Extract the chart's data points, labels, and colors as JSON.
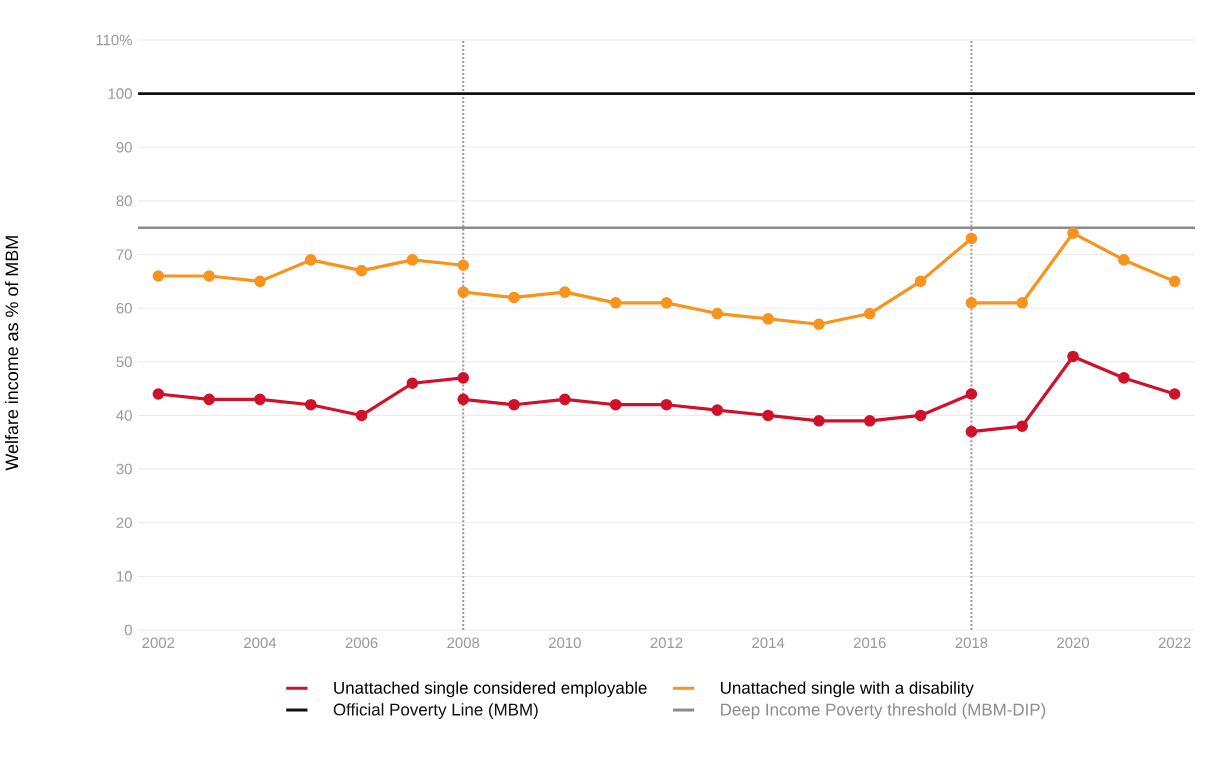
{
  "chart_data": {
    "type": "line",
    "ylabel": "Welfare income as % of MBM",
    "xlim": [
      2001.6,
      2022.4
    ],
    "xticks": [
      2002,
      2004,
      2006,
      2008,
      2010,
      2012,
      2014,
      2016,
      2018,
      2020,
      2022
    ],
    "ylim": [
      0,
      110
    ],
    "yticks": [
      0,
      10,
      20,
      30,
      40,
      50,
      60,
      70,
      80,
      90,
      100,
      {
        "value": 110,
        "label": "110%"
      }
    ],
    "grid": "y",
    "legend": "bottom",
    "marker": "circle",
    "line_style": "solid",
    "series": [
      {
        "name": "Unattached single considered employable",
        "color": "#d0112b",
        "x": [
          2002,
          2003,
          2004,
          2005,
          2006,
          2007,
          2008
        ],
        "values": [
          44,
          43,
          43,
          42,
          40,
          46,
          47
        ]
      },
      {
        "name": "Unattached single with a disability",
        "color": "#f7941d",
        "x": [
          2002,
          2003,
          2004,
          2005,
          2006,
          2007,
          2008
        ],
        "values": [
          66,
          66,
          65,
          69,
          67,
          69,
          68
        ]
      },
      {
        "color": "#d0112b",
        "x": [
          2008,
          2009,
          2010,
          2011,
          2012,
          2013,
          2014,
          2015,
          2016,
          2017,
          2018
        ],
        "values": [
          43,
          42,
          43,
          42,
          42,
          41,
          40,
          39,
          39,
          40,
          44
        ]
      },
      {
        "color": "#f7941d",
        "x": [
          2008,
          2009,
          2010,
          2011,
          2012,
          2013,
          2014,
          2015,
          2016,
          2017,
          2018
        ],
        "values": [
          63,
          62,
          63,
          61,
          61,
          59,
          58,
          57,
          59,
          65,
          73
        ]
      },
      {
        "color": "#d0112b",
        "x": [
          2018,
          2019,
          2020,
          2021,
          2022
        ],
        "values": [
          37,
          38,
          51,
          47,
          44
        ]
      },
      {
        "color": "#f7941d",
        "x": [
          2018,
          2019,
          2020,
          2021,
          2022
        ],
        "values": [
          61,
          61,
          74,
          69,
          65
        ]
      }
    ],
    "ref_lines": [
      {
        "axis": "y",
        "value": 100,
        "label": "Official Poverty Line (MBM)",
        "color": "#111111",
        "line_style": "solid"
      },
      {
        "axis": "y",
        "value": 75,
        "label": "Deep Income Poverty threshold (MBM-DIP)",
        "color": "#8c8c8c",
        "line_style": "solid"
      },
      {
        "axis": "x",
        "value": 2008,
        "color": "#999999",
        "line_style": "dotted"
      },
      {
        "axis": "x",
        "value": 2018,
        "color": "#999999",
        "line_style": "dotted"
      }
    ]
  }
}
